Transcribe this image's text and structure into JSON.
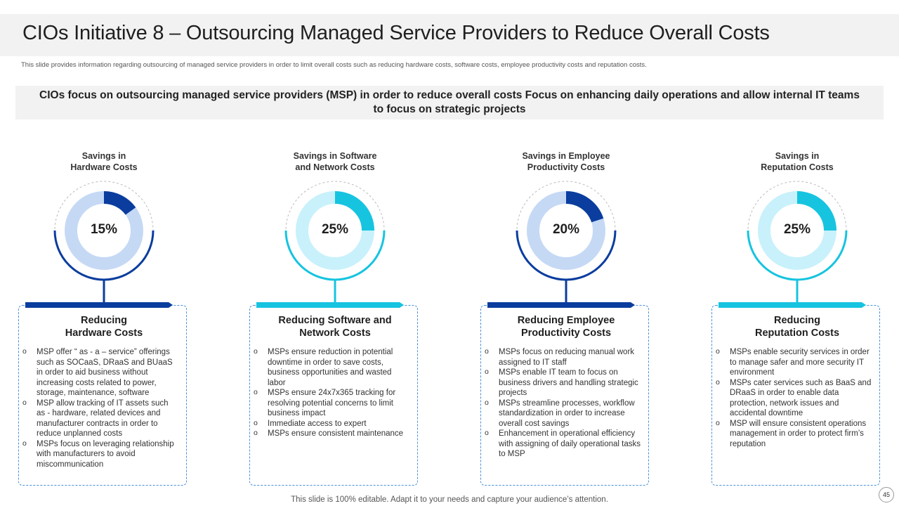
{
  "header": {
    "title": "CIOs Initiative 8 – Outsourcing Managed Service Providers to Reduce Overall Costs",
    "subtitle": "This slide provides information regarding outsourcing of managed service providers in order to limit  overall costs such as reducing hardware costs, software costs, employee productivity costs and reputation costs."
  },
  "focus": {
    "text": "CIOs focus on outsourcing managed service providers (MSP) in order to reduce overall costs  Focus on enhancing daily operations and allow internal IT teams to focus on strategic projects"
  },
  "columns": [
    {
      "heading_line1": "Savings in",
      "heading_line2": "Hardware Costs",
      "percent_label": "15%",
      "percent_value": 15,
      "track_color": "#c5d9f5",
      "fill_color": "#0a3d9e",
      "bar_color": "#0a3d9e",
      "card_title_line1": "Reducing",
      "card_title_line2": "Hardware Costs",
      "bullets": [
        "MSP offer “ as - a – service” offerings such as SOCaaS, DRaaS and BUaaS in order to  aid business without increasing costs related to power, storage, maintenance, software",
        "MSP allow tracking of IT assets such as - hardware, related devices and manufacturer contracts in order to reduce unplanned costs",
        "MSPs focus on leveraging relationship with manufacturers to avoid miscommunication"
      ]
    },
    {
      "heading_line1": "Savings in Software",
      "heading_line2": "and Network Costs",
      "percent_label": "25%",
      "percent_value": 25,
      "track_color": "#c8f1fb",
      "fill_color": "#16c4e0",
      "bar_color": "#16c4e0",
      "card_title_line1": "Reducing Software and",
      "card_title_line2": "Network Costs",
      "bullets": [
        "MSPs ensure reduction in potential downtime in order to save costs, business opportunities and wasted labor",
        "MSPs ensure 24x7x365 tracking for resolving potential concerns to limit business impact",
        "Immediate access to expert",
        "MSPs ensure consistent maintenance"
      ]
    },
    {
      "heading_line1": "Savings in Employee",
      "heading_line2": "Productivity Costs",
      "percent_label": "20%",
      "percent_value": 20,
      "track_color": "#c5d9f5",
      "fill_color": "#0a3d9e",
      "bar_color": "#0a3d9e",
      "card_title_line1": "Reducing Employee",
      "card_title_line2": "Productivity Costs",
      "bullets": [
        "MSPs focus on reducing manual work assigned to IT staff",
        "MSPs enable IT team to focus on business drivers and handling strategic projects",
        "MSPs streamline processes, workflow standardization in order to increase overall cost savings",
        "Enhancement in operational efficiency with assigning of daily operational tasks to MSP"
      ]
    },
    {
      "heading_line1": "Savings in",
      "heading_line2": "Reputation Costs",
      "percent_label": "25%",
      "percent_value": 25,
      "track_color": "#c8f1fb",
      "fill_color": "#16c4e0",
      "bar_color": "#16c4e0",
      "card_title_line1": "Reducing",
      "card_title_line2": "Reputation Costs",
      "bullets": [
        "MSPs enable security services in order to  manage safer and more security IT environment",
        "MSPs cater services such as BaaS and DRaaS in order to  enable data protection, network issues and accidental downtime",
        "MSP will ensure consistent operations management in order to protect firm’s reputation"
      ]
    }
  ],
  "footer": {
    "note": "This slide is 100% editable. Adapt it to your needs and capture your audience’s attention.",
    "page_number": "45"
  }
}
